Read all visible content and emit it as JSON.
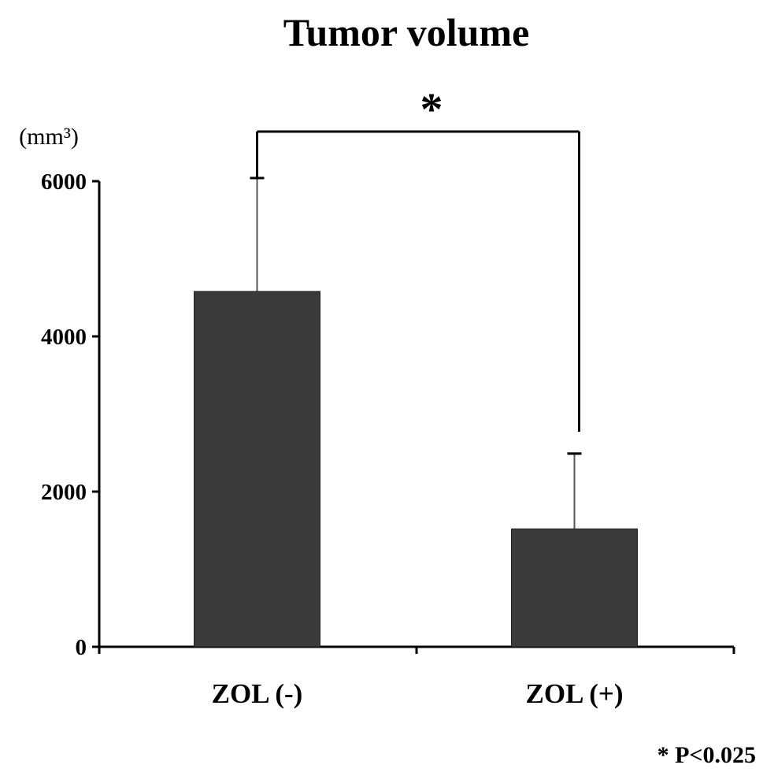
{
  "chart_data": {
    "type": "bar",
    "title": "Tumor volume",
    "unit_label": "(mm³)",
    "categories": [
      "ZOL (-)",
      "ZOL (+)"
    ],
    "values": [
      4580,
      1520
    ],
    "error_upper": [
      6040,
      2490
    ],
    "ylim": [
      0,
      6000
    ],
    "yticks": [
      0,
      2000,
      4000,
      6000
    ],
    "ytick_labels": [
      "0",
      "2000",
      "4000",
      "6000"
    ],
    "grid": false,
    "bar_color": "#3a3a3a",
    "significance": {
      "marker": "*",
      "between": [
        "ZOL (-)",
        "ZOL (+)"
      ]
    },
    "footnote": "* P<0.025"
  }
}
